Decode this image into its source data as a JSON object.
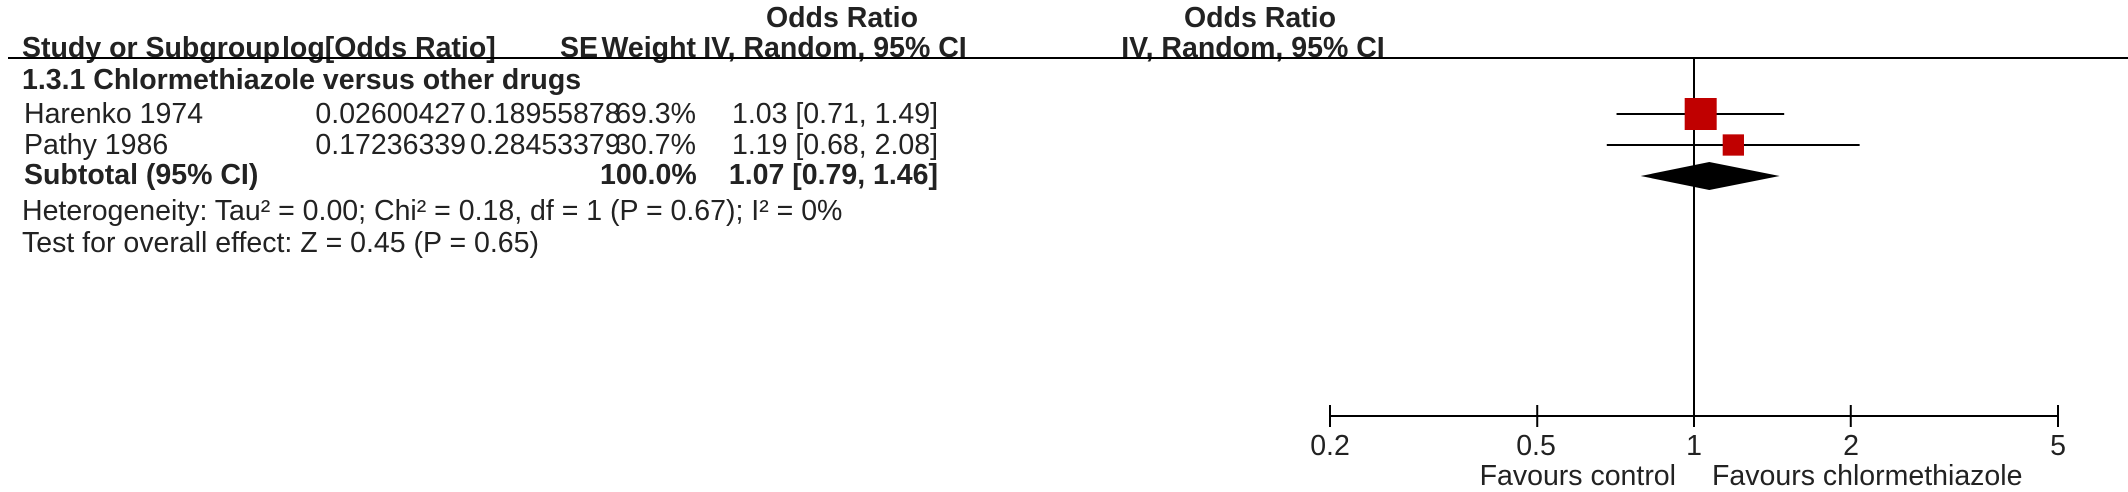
{
  "headers": {
    "study": "Study or Subgroup",
    "logor": "log[Odds Ratio]",
    "se": "SE",
    "weight": "Weight",
    "or_title": "Odds Ratio",
    "or_method": "IV, Random, 95% CI",
    "plot_title": "Odds Ratio",
    "plot_method": "IV, Random, 95% CI"
  },
  "subgroup": "1.3.1 Chlormethiazole versus other drugs",
  "studies": [
    {
      "name": "Harenko 1974",
      "logor": "0.02600427",
      "se": "0.18955878",
      "weight": "69.3%",
      "ci": "1.03 [0.71, 1.49]"
    },
    {
      "name": "Pathy 1986",
      "logor": "0.17236339",
      "se": "0.28453379",
      "weight": "30.7%",
      "ci": "1.19 [0.68, 2.08]"
    }
  ],
  "subtotal": {
    "label": "Subtotal (95% CI)",
    "weight": "100.0%",
    "ci": "1.07 [0.79, 1.46]"
  },
  "heterogeneity": "Heterogeneity: Tau² = 0.00; Chi² = 0.18, df = 1 (P = 0.67); I² = 0%",
  "overall_effect": "Test for overall effect: Z = 0.45 (P = 0.65)",
  "axis": {
    "ticks": [
      "0.2",
      "0.5",
      "1",
      "2",
      "5"
    ],
    "left_label": "Favours control",
    "right_label": "Favours chlormethiazole"
  },
  "colors": {
    "study_marker": "#c00000",
    "summary_diamond": "#000000",
    "lines": "#000000"
  },
  "chart_data": {
    "type": "forest",
    "scale": "log",
    "xlim": [
      0.2,
      5
    ],
    "ticks": [
      0.2,
      0.5,
      1,
      2,
      5
    ],
    "null_line": 1,
    "studies": [
      {
        "name": "Harenko 1974",
        "or": 1.03,
        "lo": 0.71,
        "hi": 1.49,
        "weight": 69.3
      },
      {
        "name": "Pathy 1986",
        "or": 1.19,
        "lo": 0.68,
        "hi": 2.08,
        "weight": 30.7
      }
    ],
    "summary": {
      "or": 1.07,
      "lo": 0.79,
      "hi": 1.46
    }
  }
}
